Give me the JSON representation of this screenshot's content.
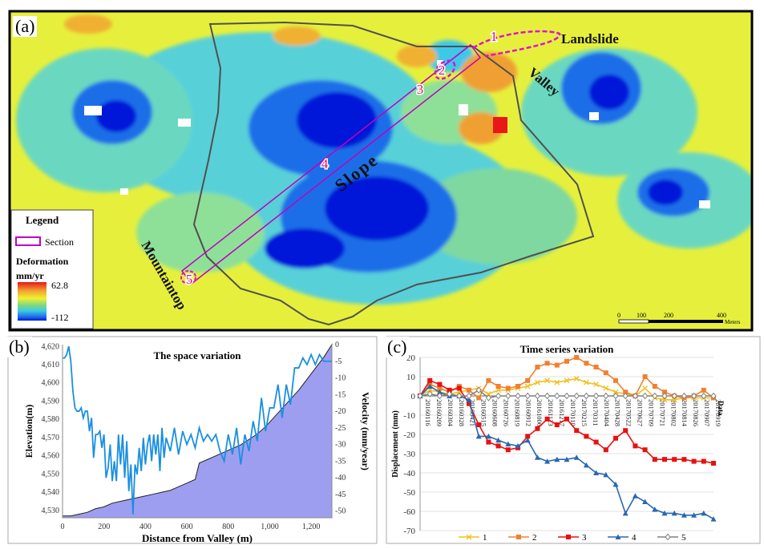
{
  "panel_a": {
    "label": "(a)",
    "legend_title": "Legend",
    "section_label": "Section",
    "deformation_label": "Deformation",
    "unit": "mm/yr",
    "max_value": "62.8",
    "min_value": "-112",
    "scalebar_ticks": [
      "0",
      "100",
      "200",
      "400"
    ],
    "scalebar_unit": "Meters",
    "annotations": {
      "landslide": "Landslide",
      "valley": "Valley",
      "slope": "Slope",
      "mountaintop": "Mountaintop"
    },
    "section_points": [
      "1",
      "2",
      "3",
      "4",
      "5"
    ],
    "colors": {
      "dark_blue": "#0018d8",
      "blue": "#1e6ee8",
      "cyan": "#3cc8e8",
      "green": "#7ed87e",
      "yellow": "#f0f032",
      "orange": "#f0a030",
      "red": "#e81818"
    }
  },
  "chart_data": [
    {
      "panel": "(b)",
      "type": "area",
      "title": "The space variation",
      "xlabel": "Distance from Valley (m)",
      "ylabel_left": "Elevation(m)",
      "ylabel_right": "Velocity (mm/year)",
      "x_ticks": [
        "0",
        "200",
        "400",
        "600",
        "800",
        "1,000",
        "1,200"
      ],
      "xlim": [
        0,
        1300
      ],
      "y_left_ticks": [
        "4,620",
        "4,610",
        "4,600",
        "4,590",
        "4,580",
        "4,570",
        "4,560",
        "4,550",
        "4,540",
        "4,530"
      ],
      "ylim_left": [
        4526,
        4621
      ],
      "y_right_ticks": [
        "0",
        "-5",
        "-10",
        "-15",
        "-20",
        "-25",
        "-30",
        "-35",
        "-40",
        "-45",
        "-50"
      ],
      "ylim_right": [
        -52,
        0
      ],
      "colors": {
        "elevation_fill": "#9e9ef0",
        "velocity_line": "#1a8fe0"
      },
      "series": [
        {
          "name": "Elevation",
          "axis": "left",
          "x": [
            0,
            40,
            80,
            120,
            160,
            200,
            240,
            280,
            320,
            360,
            400,
            440,
            480,
            520,
            560,
            600,
            640,
            660,
            700,
            740,
            780,
            820,
            860,
            900,
            940,
            980,
            1020,
            1060,
            1100,
            1140,
            1180,
            1220,
            1260,
            1300
          ],
          "values": [
            4527,
            4527,
            4528,
            4529,
            4531,
            4532,
            4534,
            4535,
            4536,
            4537,
            4538,
            4539,
            4540,
            4541,
            4543,
            4545,
            4547,
            4556,
            4558,
            4560,
            4562,
            4564,
            4566,
            4569,
            4572,
            4576,
            4581,
            4586,
            4591,
            4596,
            4602,
            4608,
            4614,
            4621
          ]
        },
        {
          "name": "Velocity",
          "axis": "right",
          "x": [
            0,
            10,
            20,
            30,
            40,
            50,
            60,
            70,
            80,
            90,
            100,
            110,
            120,
            130,
            140,
            150,
            160,
            170,
            180,
            190,
            200,
            210,
            220,
            230,
            240,
            250,
            260,
            270,
            280,
            290,
            300,
            310,
            320,
            330,
            340,
            350,
            360,
            370,
            380,
            390,
            400,
            410,
            420,
            430,
            440,
            450,
            460,
            470,
            480,
            490,
            500,
            520,
            540,
            560,
            580,
            600,
            620,
            640,
            660,
            680,
            700,
            720,
            740,
            760,
            780,
            800,
            820,
            840,
            860,
            880,
            900,
            920,
            940,
            960,
            980,
            1000,
            1020,
            1040,
            1060,
            1080,
            1100,
            1120,
            1140,
            1160,
            1180,
            1200,
            1220,
            1240,
            1260,
            1280,
            1300
          ],
          "values": [
            -4,
            -4,
            -3,
            -0.5,
            -5,
            -14,
            -19,
            -20,
            -20,
            -19,
            -22,
            -20,
            -20,
            -26,
            -22,
            -34,
            -27,
            -27,
            -26,
            -31,
            -27,
            -40,
            -37,
            -30,
            -41,
            -35,
            -41,
            -27,
            -36,
            -27,
            -40,
            -29,
            -44,
            -36,
            -51,
            -36,
            -39,
            -31,
            -38,
            -28,
            -36,
            -30,
            -27,
            -35,
            -27,
            -33,
            -27,
            -38,
            -25,
            -34,
            -28,
            -32,
            -25,
            -33,
            -26,
            -30,
            -27,
            -31,
            -25,
            -29,
            -27,
            -29,
            -27,
            -32,
            -35,
            -27,
            -33,
            -25,
            -36,
            -27,
            -32,
            -23,
            -29,
            -16,
            -26,
            -19,
            -19,
            -12,
            -22,
            -12,
            -18,
            -7,
            -7,
            -4,
            -6,
            -3,
            -6,
            -3,
            -5,
            -5,
            -5
          ]
        }
      ]
    },
    {
      "panel": "(c)",
      "type": "line",
      "title": "Time series variation",
      "ylabel": "Displacement (mm)",
      "xlabel": "Data",
      "ylim": [
        -70,
        20
      ],
      "y_ticks": [
        "20",
        "10",
        "0",
        "-10",
        "-20",
        "-30",
        "-40",
        "-50",
        "-60",
        "-70"
      ],
      "categories": [
        "20160116",
        "20160209",
        "20160304",
        "20160328",
        "20160421",
        "20160515",
        "20160608",
        "20160702",
        "20160726",
        "20160819",
        "20160912",
        "20161006",
        "20161030",
        "20161123",
        "20161217",
        "20170110",
        "20170203",
        "20170227",
        "20170323",
        "20170416",
        "20170510",
        "20170603",
        "20170627",
        "20170721",
        "20170814",
        "20170907",
        "20171001",
        "20171025",
        "20171118",
        "20171212",
        "20180105"
      ],
      "x_tick_labels": [
        "20160116",
        "20160209",
        "20160304",
        "20160328",
        "20160421",
        "20160515",
        "20160608",
        "20160726",
        "20160819",
        "20160912",
        "20161006",
        "20161123",
        "20161217",
        "20170110",
        "20170215",
        "20170311",
        "20170404",
        "20170428",
        "20170522",
        "20170627",
        "20170709",
        "20170721",
        "20170802",
        "20170814",
        "20170826",
        "20170907",
        "20170919"
      ],
      "legend": [
        "1",
        "2",
        "3",
        "4",
        "5"
      ],
      "series": [
        {
          "name": "1",
          "color": "#f0c020",
          "marker": "x",
          "values": [
            0,
            3,
            2,
            1,
            2,
            3,
            4,
            1,
            3,
            3,
            4,
            5,
            7,
            8,
            7,
            8,
            9,
            7,
            6,
            4,
            2,
            1,
            0,
            4,
            -1,
            -2,
            -2,
            -1,
            -1,
            -1,
            -1
          ]
        },
        {
          "name": "2",
          "color": "#f08030",
          "marker": "square",
          "values": [
            0,
            6,
            4,
            2,
            5,
            3,
            -1,
            8,
            5,
            4,
            5,
            8,
            15,
            17,
            16,
            18,
            20,
            17,
            15,
            12,
            8,
            2,
            0,
            10,
            5,
            2,
            0,
            -1,
            0,
            3,
            -1
          ]
        },
        {
          "name": "3",
          "color": "#e81010",
          "marker": "square",
          "values": [
            0,
            8,
            6,
            3,
            4,
            -4,
            -15,
            -24,
            -26,
            -28,
            -27,
            -21,
            -17,
            -12,
            -15,
            -12,
            -18,
            -21,
            -24,
            -28,
            -22,
            -18,
            -26,
            -28,
            -33,
            -33,
            -33,
            -33,
            -34,
            -34,
            -35
          ]
        },
        {
          "name": "4",
          "color": "#2868b0",
          "marker": "triangle",
          "values": [
            0,
            5,
            2,
            0,
            0,
            -2,
            -21,
            -21,
            -23,
            -25,
            -26,
            -23,
            -32,
            -34,
            -33,
            -33,
            -32,
            -36,
            -40,
            -41,
            -46,
            -61,
            -52,
            -55,
            -59,
            -61,
            -61,
            -62,
            -62,
            -61,
            -64
          ]
        },
        {
          "name": "5",
          "color": "#808080",
          "marker": "diamond",
          "values": [
            0,
            1,
            0,
            1,
            0,
            0,
            3,
            -1,
            0,
            0,
            0,
            0,
            0,
            0,
            0,
            0,
            0,
            0,
            0,
            0,
            0,
            0,
            0,
            0,
            0,
            0,
            0,
            0,
            0,
            0,
            0
          ]
        }
      ]
    }
  ]
}
